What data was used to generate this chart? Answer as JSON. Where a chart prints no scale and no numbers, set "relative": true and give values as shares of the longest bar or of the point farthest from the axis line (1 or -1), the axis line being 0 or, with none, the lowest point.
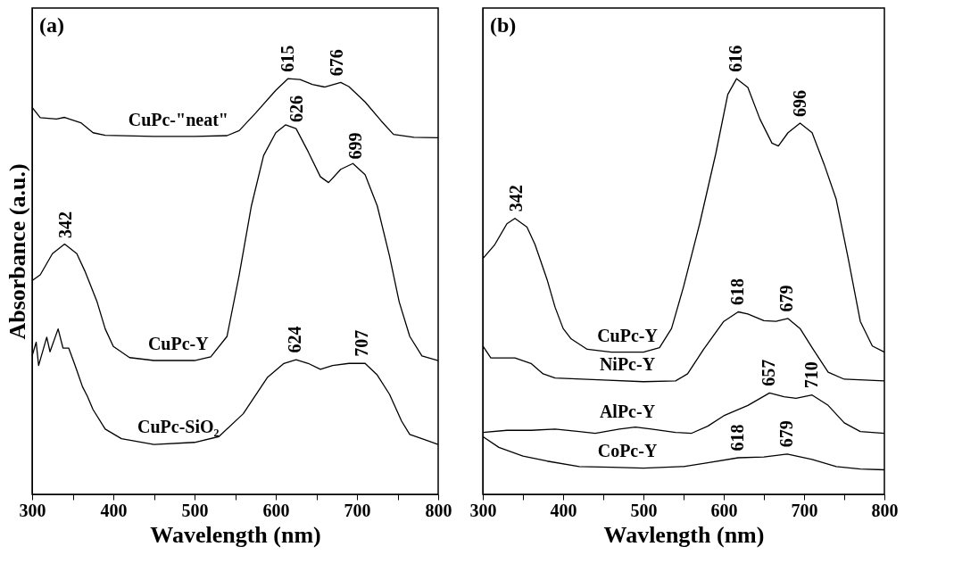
{
  "chart_data": [
    {
      "type": "line",
      "title": "(a)",
      "xlabel": "Wavelength (nm)",
      "ylabel": "Absorbance (a.u.)",
      "relative": true,
      "tick_labels": "x",
      "grid": false,
      "legend": false,
      "marker": "none",
      "line_style": "solid",
      "xlim": [
        300,
        800
      ],
      "xticks": [
        300,
        {
          "value": 350,
          "label": null
        },
        400,
        {
          "value": 450,
          "label": null
        },
        500,
        {
          "value": 550,
          "label": null
        },
        600,
        {
          "value": 650,
          "label": null
        },
        700,
        {
          "value": 750,
          "label": null
        },
        800
      ],
      "series": [
        {
          "name": "CuPc-\"neat\"",
          "color": "#000000",
          "x": [
            300,
            310,
            330,
            340,
            360,
            375,
            390,
            450,
            500,
            540,
            555,
            575,
            600,
            615,
            630,
            645,
            660,
            680,
            690,
            710,
            730,
            745,
            770,
            800
          ],
          "values": [
            0.931,
            0.906,
            0.903,
            0.907,
            0.894,
            0.87,
            0.864,
            0.861,
            0.861,
            0.863,
            0.875,
            0.917,
            0.972,
            1.0,
            0.998,
            0.986,
            0.98,
            0.991,
            0.981,
            0.944,
            0.898,
            0.866,
            0.859,
            0.858
          ]
        },
        {
          "name": "CuPc-Y",
          "color": "#000000",
          "x": [
            300,
            310,
            325,
            340,
            355,
            365,
            380,
            390,
            400,
            420,
            450,
            500,
            520,
            540,
            555,
            570,
            585,
            600,
            612,
            625,
            640,
            655,
            665,
            680,
            695,
            710,
            725,
            740,
            752,
            765,
            780,
            800
          ],
          "values": [
            0.514,
            0.528,
            0.579,
            0.602,
            0.579,
            0.537,
            0.463,
            0.398,
            0.356,
            0.329,
            0.322,
            0.322,
            0.331,
            0.38,
            0.528,
            0.694,
            0.815,
            0.87,
            0.889,
            0.88,
            0.824,
            0.764,
            0.75,
            0.782,
            0.796,
            0.769,
            0.694,
            0.574,
            0.463,
            0.38,
            0.333,
            0.322
          ]
        },
        {
          "name": "CuPc-SiO₂",
          "color": "#000000",
          "x": [
            300,
            305,
            308,
            318,
            322,
            332,
            338,
            345,
            352,
            357,
            362,
            368,
            375,
            390,
            410,
            450,
            500,
            530,
            560,
            590,
            610,
            625,
            640,
            655,
            670,
            690,
            710,
            725,
            740,
            755,
            765,
            780,
            800
          ],
          "values": [
            0.333,
            0.366,
            0.31,
            0.378,
            0.343,
            0.398,
            0.352,
            0.352,
            0.315,
            0.287,
            0.259,
            0.236,
            0.204,
            0.157,
            0.134,
            0.12,
            0.125,
            0.139,
            0.194,
            0.282,
            0.315,
            0.324,
            0.315,
            0.301,
            0.31,
            0.315,
            0.315,
            0.287,
            0.241,
            0.176,
            0.144,
            0.134,
            0.12
          ]
        }
      ],
      "annotations": [
        {
          "text": "615",
          "x": 615,
          "y": 1.0
        },
        {
          "text": "676",
          "x": 676,
          "y": 0.99
        },
        {
          "text": "626",
          "x": 626,
          "y": 0.879
        },
        {
          "text": "699",
          "x": 699,
          "y": 0.79
        },
        {
          "text": "342",
          "x": 342,
          "y": 0.6
        },
        {
          "text": "624",
          "x": 624,
          "y": 0.324
        },
        {
          "text": "707",
          "x": 707,
          "y": 0.315
        }
      ]
    },
    {
      "type": "line",
      "title": "(b)",
      "xlabel": "Wavlength (nm)",
      "relative": true,
      "tick_labels": "x",
      "grid": false,
      "legend": false,
      "marker": "none",
      "line_style": "solid",
      "xlim": [
        300,
        800
      ],
      "xticks": [
        300,
        {
          "value": 350,
          "label": null
        },
        400,
        {
          "value": 450,
          "label": null
        },
        500,
        {
          "value": 550,
          "label": null
        },
        600,
        {
          "value": 650,
          "label": null
        },
        700,
        {
          "value": 750,
          "label": null
        },
        800
      ],
      "series": [
        {
          "name": "CuPc-Y",
          "color": "#000000",
          "x": [
            300,
            315,
            330,
            340,
            355,
            365,
            380,
            390,
            400,
            410,
            430,
            460,
            500,
            520,
            535,
            550,
            570,
            590,
            605,
            616,
            630,
            645,
            660,
            668,
            680,
            695,
            710,
            725,
            740,
            755,
            770,
            785,
            800
          ],
          "values": [
            0.567,
            0.601,
            0.651,
            0.664,
            0.643,
            0.601,
            0.517,
            0.45,
            0.399,
            0.374,
            0.349,
            0.342,
            0.342,
            0.353,
            0.399,
            0.5,
            0.651,
            0.819,
            0.962,
            1.0,
            0.979,
            0.903,
            0.845,
            0.838,
            0.87,
            0.893,
            0.87,
            0.794,
            0.71,
            0.567,
            0.416,
            0.357,
            0.342
          ]
        },
        {
          "name": "NiPc-Y",
          "color": "#000000",
          "x": [
            300,
            310,
            340,
            360,
            375,
            390,
            450,
            500,
            540,
            555,
            575,
            600,
            618,
            630,
            650,
            665,
            680,
            695,
            710,
            730,
            750,
            800
          ],
          "values": [
            0.357,
            0.328,
            0.328,
            0.315,
            0.29,
            0.28,
            0.275,
            0.271,
            0.273,
            0.29,
            0.349,
            0.416,
            0.439,
            0.434,
            0.418,
            0.416,
            0.423,
            0.399,
            0.353,
            0.294,
            0.277,
            0.273
          ]
        },
        {
          "name": "AlPc-Y",
          "color": "#000000",
          "x": [
            300,
            330,
            360,
            390,
            420,
            440,
            470,
            490,
            510,
            540,
            560,
            580,
            600,
            630,
            657,
            675,
            690,
            710,
            730,
            750,
            770,
            800
          ],
          "values": [
            0.149,
            0.154,
            0.154,
            0.157,
            0.151,
            0.147,
            0.157,
            0.162,
            0.157,
            0.149,
            0.147,
            0.164,
            0.189,
            0.214,
            0.244,
            0.235,
            0.231,
            0.239,
            0.214,
            0.172,
            0.151,
            0.147
          ]
        },
        {
          "name": "CoPc-Y",
          "color": "#000000",
          "x": [
            300,
            320,
            350,
            380,
            420,
            460,
            500,
            550,
            580,
            618,
            650,
            679,
            710,
            740,
            770,
            800
          ],
          "values": [
            0.139,
            0.113,
            0.092,
            0.08,
            0.067,
            0.065,
            0.063,
            0.067,
            0.076,
            0.088,
            0.09,
            0.097,
            0.084,
            0.067,
            0.061,
            0.059
          ]
        }
      ],
      "annotations": [
        {
          "text": "616",
          "x": 616,
          "y": 1.0
        },
        {
          "text": "696",
          "x": 696,
          "y": 0.892
        },
        {
          "text": "342",
          "x": 342,
          "y": 0.664
        },
        {
          "text": "618",
          "x": 618,
          "y": 0.439
        },
        {
          "text": "679",
          "x": 679,
          "y": 0.423
        },
        {
          "text": "657",
          "x": 657,
          "y": 0.244
        },
        {
          "text": "710",
          "x": 710,
          "y": 0.239
        },
        {
          "text": "618",
          "x": 618,
          "y": 0.088
        },
        {
          "text": "679",
          "x": 679,
          "y": 0.097
        }
      ]
    }
  ]
}
